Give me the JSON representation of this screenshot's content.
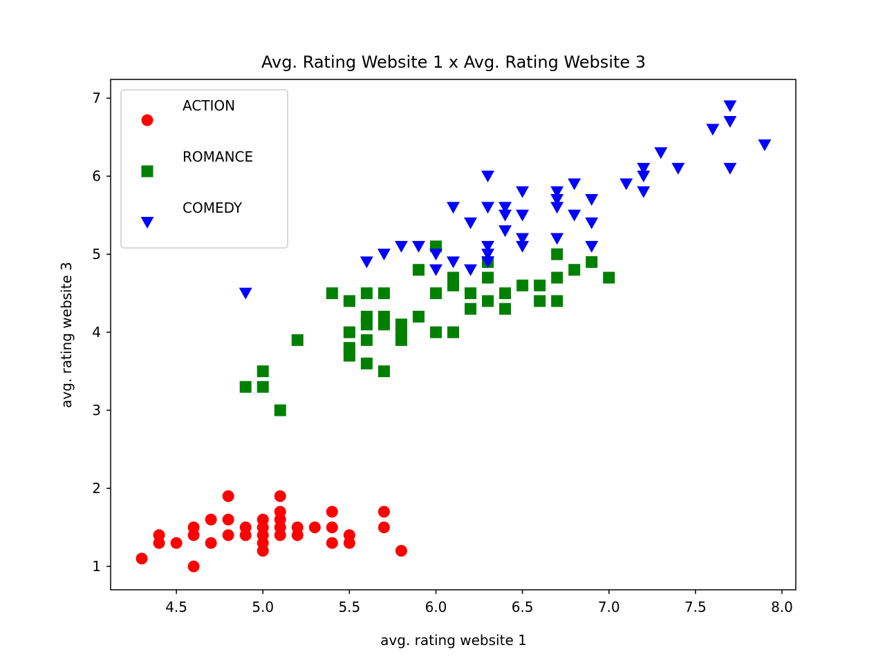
{
  "chart_data": {
    "type": "scatter",
    "title": "Avg. Rating Website 1 x Avg. Rating Website 3",
    "xlabel": "avg. rating website 1",
    "ylabel": "avg. rating website 3",
    "xlim": [
      4.12,
      8.08
    ],
    "ylim": [
      0.7,
      7.24
    ],
    "xticks": [
      4.5,
      5.0,
      5.5,
      6.0,
      6.5,
      7.0,
      7.5,
      8.0
    ],
    "xtick_labels": [
      "4.5",
      "5.0",
      "5.5",
      "6.0",
      "6.5",
      "7.0",
      "7.5",
      "8.0"
    ],
    "yticks": [
      1,
      2,
      3,
      4,
      5,
      6,
      7
    ],
    "ytick_labels": [
      "1",
      "2",
      "3",
      "4",
      "5",
      "6",
      "7"
    ],
    "grid": false,
    "legend_position": "top-left",
    "series": [
      {
        "name": "ACTION",
        "color": "#ff0000",
        "marker": "circle",
        "points": [
          [
            4.3,
            1.1
          ],
          [
            4.4,
            1.4
          ],
          [
            4.4,
            1.3
          ],
          [
            4.5,
            1.3
          ],
          [
            4.6,
            1.0
          ],
          [
            4.6,
            1.4
          ],
          [
            4.6,
            1.5
          ],
          [
            4.7,
            1.3
          ],
          [
            4.7,
            1.6
          ],
          [
            4.8,
            1.4
          ],
          [
            4.8,
            1.6
          ],
          [
            4.8,
            1.9
          ],
          [
            4.9,
            1.4
          ],
          [
            4.9,
            1.5
          ],
          [
            5.0,
            1.2
          ],
          [
            5.0,
            1.3
          ],
          [
            5.0,
            1.4
          ],
          [
            5.0,
            1.5
          ],
          [
            5.0,
            1.6
          ],
          [
            5.1,
            1.4
          ],
          [
            5.1,
            1.5
          ],
          [
            5.1,
            1.6
          ],
          [
            5.1,
            1.7
          ],
          [
            5.1,
            1.9
          ],
          [
            5.2,
            1.4
          ],
          [
            5.2,
            1.5
          ],
          [
            5.3,
            1.5
          ],
          [
            5.4,
            1.3
          ],
          [
            5.4,
            1.5
          ],
          [
            5.4,
            1.7
          ],
          [
            5.5,
            1.3
          ],
          [
            5.5,
            1.4
          ],
          [
            5.7,
            1.5
          ],
          [
            5.7,
            1.7
          ],
          [
            5.8,
            1.2
          ]
        ]
      },
      {
        "name": "ROMANCE",
        "color": "#008000",
        "marker": "square",
        "points": [
          [
            4.9,
            3.3
          ],
          [
            5.0,
            3.3
          ],
          [
            5.0,
            3.5
          ],
          [
            5.1,
            3.0
          ],
          [
            5.2,
            3.9
          ],
          [
            5.4,
            4.5
          ],
          [
            5.5,
            3.7
          ],
          [
            5.5,
            3.8
          ],
          [
            5.5,
            4.0
          ],
          [
            5.5,
            4.4
          ],
          [
            5.6,
            3.6
          ],
          [
            5.6,
            3.9
          ],
          [
            5.6,
            4.1
          ],
          [
            5.6,
            4.2
          ],
          [
            5.6,
            4.5
          ],
          [
            5.7,
            3.5
          ],
          [
            5.7,
            4.1
          ],
          [
            5.7,
            4.2
          ],
          [
            5.7,
            4.5
          ],
          [
            5.8,
            3.9
          ],
          [
            5.8,
            4.0
          ],
          [
            5.8,
            4.1
          ],
          [
            5.9,
            4.2
          ],
          [
            5.9,
            4.8
          ],
          [
            6.0,
            4.0
          ],
          [
            6.0,
            4.5
          ],
          [
            6.0,
            5.1
          ],
          [
            6.1,
            4.0
          ],
          [
            6.1,
            4.6
          ],
          [
            6.1,
            4.7
          ],
          [
            6.2,
            4.3
          ],
          [
            6.2,
            4.5
          ],
          [
            6.3,
            4.4
          ],
          [
            6.3,
            4.7
          ],
          [
            6.3,
            4.9
          ],
          [
            6.4,
            4.3
          ],
          [
            6.4,
            4.5
          ],
          [
            6.5,
            4.6
          ],
          [
            6.6,
            4.4
          ],
          [
            6.6,
            4.6
          ],
          [
            6.7,
            4.4
          ],
          [
            6.7,
            4.7
          ],
          [
            6.7,
            5.0
          ],
          [
            6.8,
            4.8
          ],
          [
            6.9,
            4.9
          ],
          [
            7.0,
            4.7
          ]
        ]
      },
      {
        "name": "COMEDY",
        "color": "#0000ff",
        "marker": "triangle-down",
        "points": [
          [
            4.9,
            4.5
          ],
          [
            5.6,
            4.9
          ],
          [
            5.7,
            5.0
          ],
          [
            5.8,
            5.1
          ],
          [
            5.9,
            5.1
          ],
          [
            6.0,
            4.8
          ],
          [
            6.0,
            5.0
          ],
          [
            6.1,
            4.9
          ],
          [
            6.1,
            5.6
          ],
          [
            6.2,
            4.8
          ],
          [
            6.2,
            5.4
          ],
          [
            6.3,
            4.9
          ],
          [
            6.3,
            5.0
          ],
          [
            6.3,
            5.1
          ],
          [
            6.3,
            5.6
          ],
          [
            6.3,
            6.0
          ],
          [
            6.4,
            5.3
          ],
          [
            6.4,
            5.5
          ],
          [
            6.4,
            5.6
          ],
          [
            6.5,
            5.1
          ],
          [
            6.5,
            5.2
          ],
          [
            6.5,
            5.5
          ],
          [
            6.5,
            5.8
          ],
          [
            6.7,
            5.2
          ],
          [
            6.7,
            5.6
          ],
          [
            6.7,
            5.7
          ],
          [
            6.7,
            5.8
          ],
          [
            6.8,
            5.5
          ],
          [
            6.8,
            5.9
          ],
          [
            6.9,
            5.1
          ],
          [
            6.9,
            5.4
          ],
          [
            6.9,
            5.7
          ],
          [
            7.1,
            5.9
          ],
          [
            7.2,
            5.8
          ],
          [
            7.2,
            6.0
          ],
          [
            7.2,
            6.1
          ],
          [
            7.3,
            6.3
          ],
          [
            7.4,
            6.1
          ],
          [
            7.6,
            6.6
          ],
          [
            7.7,
            6.1
          ],
          [
            7.7,
            6.7
          ],
          [
            7.7,
            6.9
          ],
          [
            7.9,
            6.4
          ]
        ]
      }
    ]
  }
}
